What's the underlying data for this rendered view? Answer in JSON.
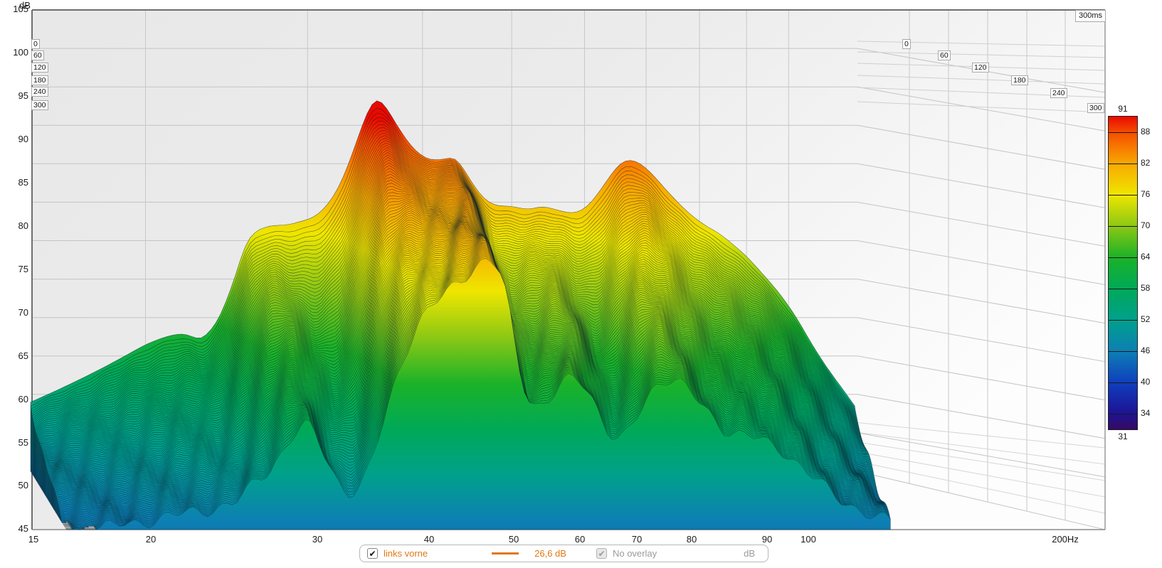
{
  "y_axis": {
    "unit_label": "dB",
    "ticks": [
      "105",
      "100",
      "95",
      "90",
      "85",
      "80",
      "75",
      "70",
      "65",
      "60",
      "55",
      "50",
      "45"
    ]
  },
  "x_axis": {
    "ticks": [
      "15",
      "20",
      "30",
      "40",
      "50",
      "60",
      "70",
      "80",
      "90",
      "100",
      "200Hz"
    ]
  },
  "time_axis": {
    "corner_label": "300ms",
    "ticks": [
      "0",
      "60",
      "120",
      "180",
      "240",
      "300"
    ]
  },
  "colorbar": {
    "top_label": "91",
    "bottom_label": "31",
    "ticks": [
      "88",
      "82",
      "76",
      "70",
      "64",
      "58",
      "52",
      "46",
      "40",
      "34"
    ],
    "gradient": [
      {
        "v": 91,
        "c": "#ea0a00"
      },
      {
        "v": 88,
        "c": "#f54d00"
      },
      {
        "v": 82,
        "c": "#f9a800"
      },
      {
        "v": 76,
        "c": "#efe600"
      },
      {
        "v": 70,
        "c": "#8cc814"
      },
      {
        "v": 64,
        "c": "#1bb228"
      },
      {
        "v": 58,
        "c": "#00a957"
      },
      {
        "v": 52,
        "c": "#00a08c"
      },
      {
        "v": 46,
        "c": "#0d7fb4"
      },
      {
        "v": 40,
        "c": "#0f3fbd"
      },
      {
        "v": 34,
        "c": "#1d1394"
      },
      {
        "v": 31,
        "c": "#370a60"
      }
    ]
  },
  "legend": {
    "trace_checked": true,
    "check_glyph": "✔",
    "trace_label": "links vorne",
    "trace_color": "#e07814",
    "value_readout": "26,6 dB",
    "overlay_checked": true,
    "overlay_label": "No overlay",
    "unit_label": "dB"
  },
  "chart_data": {
    "type": "area",
    "subtype": "3d_waterfall_spectral_decay",
    "title": "",
    "x_unit": "Hz",
    "y_unit": "dB",
    "z_unit": "ms",
    "x_range": [
      15,
      200
    ],
    "y_range": [
      45,
      105
    ],
    "z_range": [
      0,
      300
    ],
    "color_scale_range": [
      31,
      91
    ],
    "grid": true,
    "legend_position": "bottom",
    "frequencies_hz": [
      15,
      16,
      17,
      18,
      19,
      20,
      21,
      22,
      23,
      24,
      25,
      25.7,
      26.5,
      27.5,
      28.5,
      29.5,
      30.5,
      31.5,
      32.5,
      33.5,
      34.5,
      35.5,
      36.5,
      37.5,
      39,
      40.5,
      42,
      43.5,
      45,
      46.5,
      48,
      50,
      52,
      54,
      56,
      58,
      60,
      62,
      64,
      66,
      68,
      70,
      72.5,
      75,
      78,
      81,
      84,
      87,
      90,
      94,
      98,
      102,
      106,
      110,
      114,
      118
    ],
    "spl_db_t0": [
      54,
      55.5,
      57,
      58.5,
      60,
      61.5,
      62.5,
      63,
      62,
      64.5,
      70,
      75,
      76.5,
      77,
      77,
      77.5,
      78,
      79.5,
      82,
      86,
      90.5,
      94,
      92.5,
      90,
      87,
      85.5,
      85.5,
      86,
      83,
      80.5,
      79.5,
      79.5,
      79,
      79.5,
      79,
      78.5,
      79,
      81,
      83.5,
      85.5,
      85.5,
      84.5,
      82.5,
      80.5,
      78.5,
      77,
      76,
      74.5,
      73,
      70.5,
      68,
      65,
      61.5,
      58.5,
      56,
      53.5
    ],
    "spl_db_t300": [
      45,
      45,
      45.5,
      46,
      46.5,
      47,
      47.5,
      48,
      48.5,
      51,
      53,
      55,
      57.5,
      59,
      55.5,
      51.5,
      49.5,
      50.5,
      55,
      61,
      66,
      70,
      72.5,
      74,
      76,
      78,
      79.5,
      80.5,
      77,
      66,
      61,
      61.5,
      64,
      65,
      62.5,
      58,
      56,
      58.5,
      62,
      64.5,
      65,
      64,
      62,
      60,
      58,
      57.5,
      57,
      56,
      55.5,
      53.5,
      51.5,
      49.5,
      48.5,
      47.5,
      46.5,
      46
    ],
    "num_slices": 96,
    "surface_colormap": [
      {
        "db": 105,
        "c": "#e10000"
      },
      {
        "db": 91,
        "c": "#ea0a00"
      },
      {
        "db": 88,
        "c": "#f54d00"
      },
      {
        "db": 82,
        "c": "#f9a800"
      },
      {
        "db": 76,
        "c": "#efe600"
      },
      {
        "db": 70,
        "c": "#8cc814"
      },
      {
        "db": 64,
        "c": "#1bb228"
      },
      {
        "db": 58,
        "c": "#00a957"
      },
      {
        "db": 52,
        "c": "#00a08c"
      },
      {
        "db": 46,
        "c": "#0d7fb4"
      },
      {
        "db": 45,
        "c": "#0d79ae"
      }
    ]
  }
}
